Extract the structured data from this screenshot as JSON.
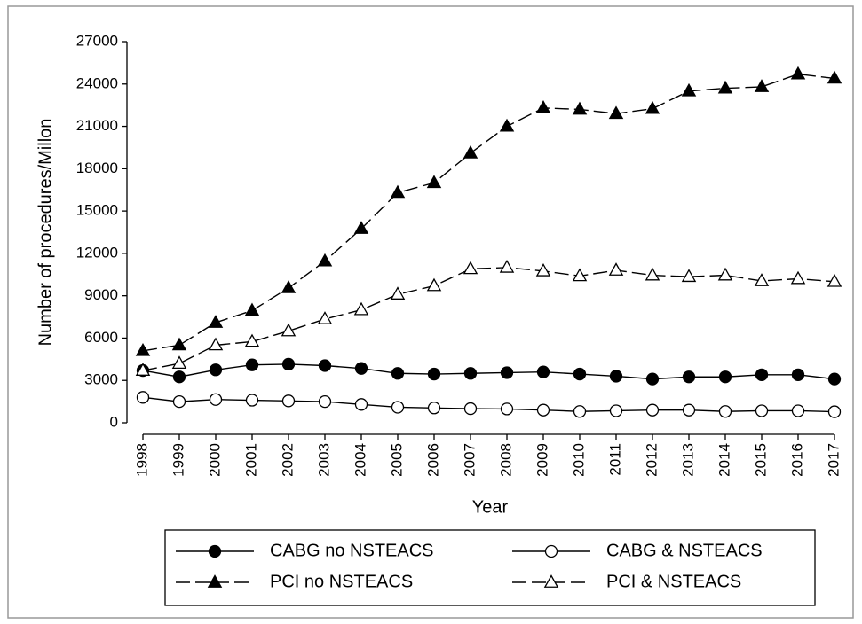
{
  "chart_data": {
    "type": "line",
    "xlabel": "Year",
    "ylabel": "Number of procedures/Millon",
    "categories": [
      "1998",
      "1999",
      "2000",
      "2001",
      "2002",
      "2003",
      "2004",
      "2005",
      "2006",
      "2007",
      "2008",
      "2009",
      "2010",
      "2011",
      "2012",
      "2013",
      "2014",
      "2015",
      "2016",
      "2017"
    ],
    "ylim": [
      0,
      27000
    ],
    "yticks": [
      0,
      3000,
      6000,
      9000,
      12000,
      15000,
      18000,
      21000,
      24000,
      27000
    ],
    "grid": false,
    "series": [
      {
        "name": "CABG no NSTEACS",
        "color": "#000000",
        "marker": "circle",
        "filled": true,
        "dashed": false,
        "values": [
          3700,
          3250,
          3750,
          4100,
          4150,
          4050,
          3850,
          3500,
          3450,
          3500,
          3550,
          3600,
          3450,
          3300,
          3100,
          3250,
          3250,
          3400,
          3400,
          3100
        ]
      },
      {
        "name": "CABG & NSTEACS",
        "color": "#000000",
        "marker": "circle",
        "filled": false,
        "dashed": false,
        "values": [
          1800,
          1500,
          1650,
          1600,
          1550,
          1500,
          1300,
          1100,
          1050,
          1000,
          980,
          900,
          800,
          850,
          900,
          900,
          800,
          850,
          850,
          780
        ]
      },
      {
        "name": "PCI no NSTEACS",
        "color": "#000000",
        "marker": "triangle",
        "filled": true,
        "dashed": true,
        "values": [
          5100,
          5500,
          7100,
          7950,
          9550,
          11450,
          13750,
          16300,
          17000,
          19100,
          21000,
          22300,
          22200,
          21900,
          22250,
          23500,
          23700,
          23800,
          24700,
          24400
        ]
      },
      {
        "name": "PCI & NSTEACS",
        "color": "#000000",
        "marker": "triangle",
        "filled": false,
        "dashed": true,
        "values": [
          3700,
          4200,
          5500,
          5750,
          6500,
          7350,
          8000,
          9100,
          9700,
          10900,
          11000,
          10750,
          10400,
          10800,
          10450,
          10350,
          10450,
          10050,
          10200,
          10000
        ]
      }
    ]
  }
}
